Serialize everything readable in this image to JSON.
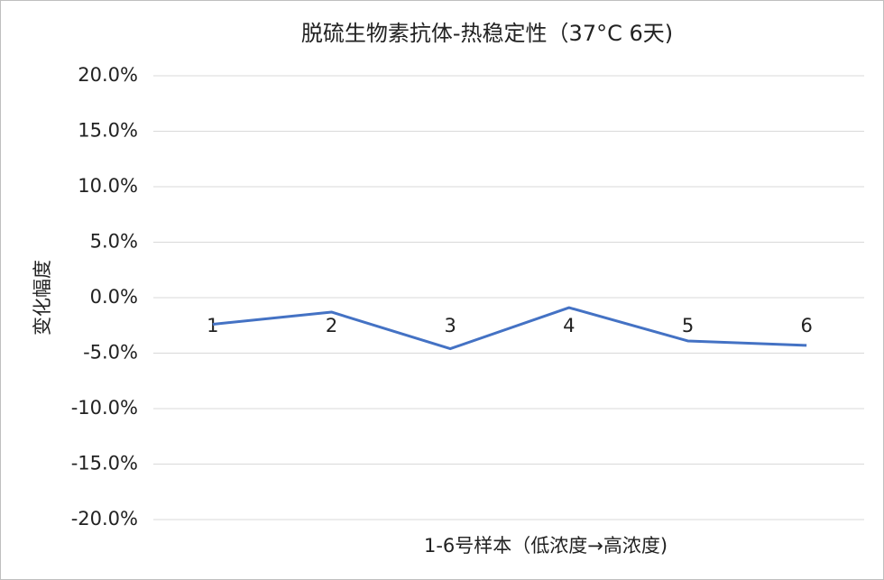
{
  "chart_data": {
    "type": "line",
    "title": "脱硫生物素抗体-热稳定性（37°C 6天)",
    "x_label": "1-6号样本（低浓度→高浓度)",
    "y_label": "变化幅度",
    "categories": [
      "1",
      "2",
      "3",
      "4",
      "5",
      "6"
    ],
    "series": [
      {
        "name": "变化幅度",
        "color": "#4472c4",
        "values": [
          -2.4,
          -1.3,
          -4.6,
          -0.9,
          -3.9,
          -4.3
        ]
      }
    ],
    "ylim": [
      -20,
      20
    ],
    "yticks": [
      {
        "value": -20,
        "label": "-20.0%"
      },
      {
        "value": -15,
        "label": "-15.0%"
      },
      {
        "value": -10,
        "label": "-10.0%"
      },
      {
        "value": -5,
        "label": "-5.0%"
      },
      {
        "value": 0,
        "label": "0.0%"
      },
      {
        "value": 5,
        "label": "5.0%"
      },
      {
        "value": 10,
        "label": "10.0%"
      },
      {
        "value": 15,
        "label": "15.0%"
      },
      {
        "value": 20,
        "label": "20.0%"
      }
    ],
    "grid": true
  }
}
